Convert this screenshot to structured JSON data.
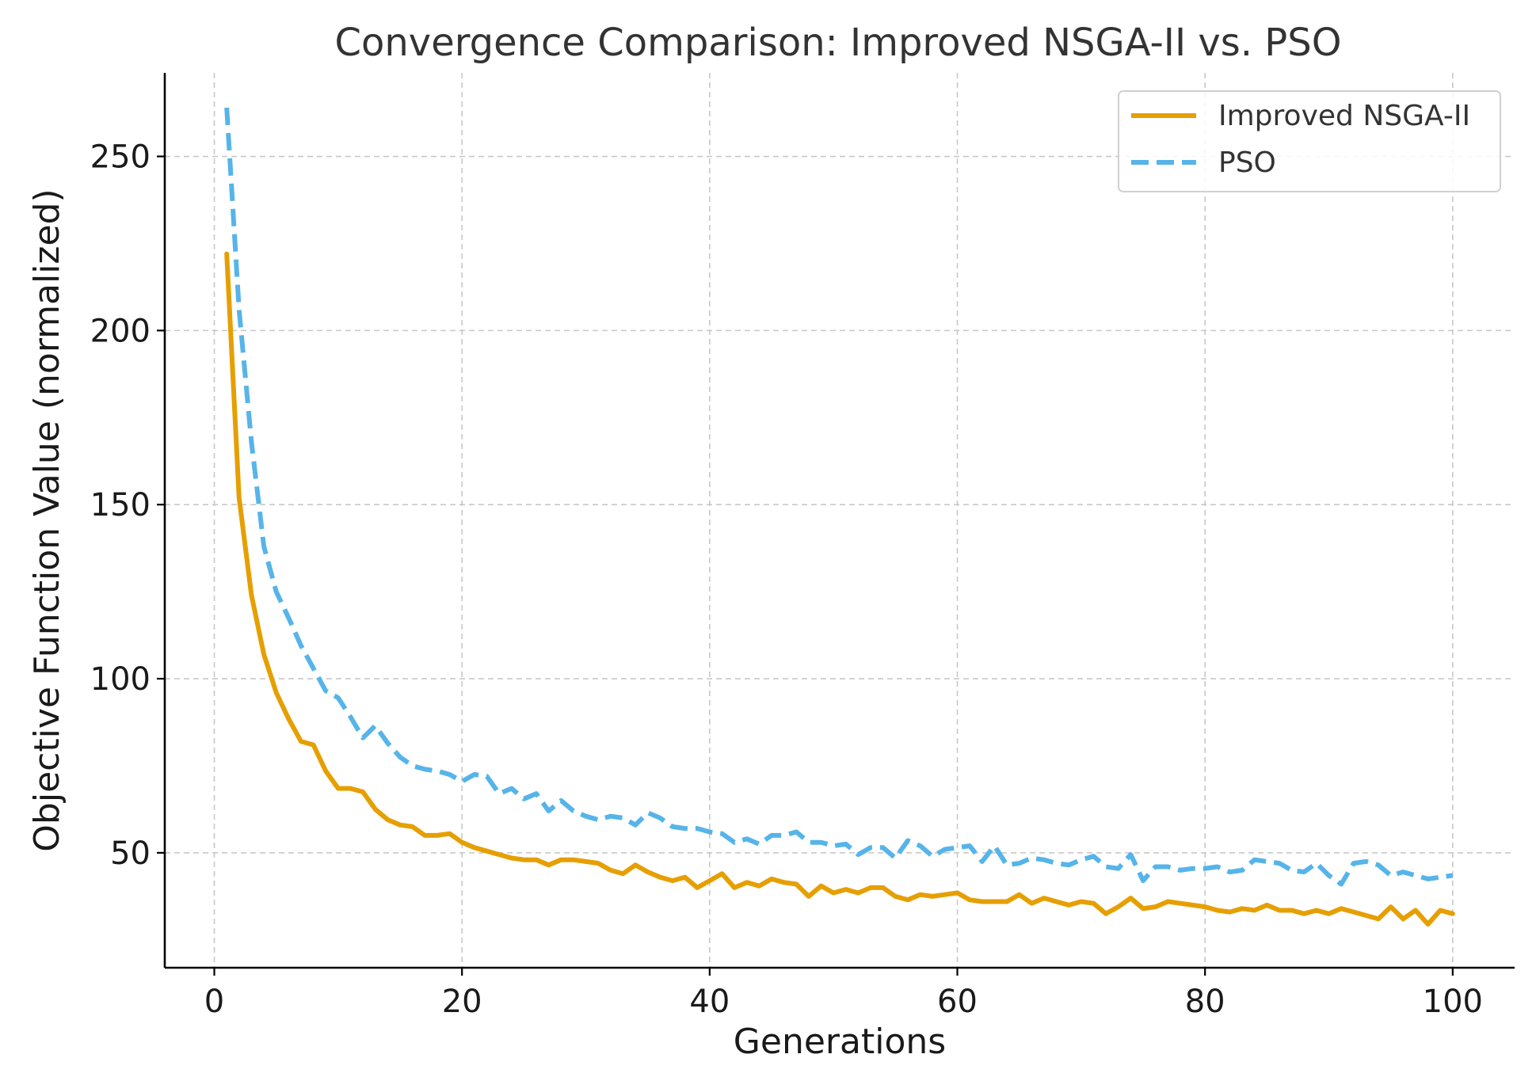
{
  "chart_data": {
    "type": "line",
    "title": "Convergence Comparison: Improved NSGA-II vs. PSO",
    "xlabel": "Generations",
    "ylabel": "Objective Function Value (normalized)",
    "xlim": [
      -4,
      105
    ],
    "ylim": [
      17,
      274
    ],
    "x_ticks": [
      0,
      20,
      40,
      60,
      80,
      100
    ],
    "y_ticks": [
      50,
      100,
      150,
      200,
      250
    ],
    "grid": true,
    "legend_position": "top-right",
    "x": [
      1,
      2,
      3,
      4,
      5,
      6,
      7,
      8,
      9,
      10,
      11,
      12,
      13,
      14,
      15,
      16,
      17,
      18,
      19,
      20,
      21,
      22,
      23,
      24,
      25,
      26,
      27,
      28,
      29,
      30,
      31,
      32,
      33,
      34,
      35,
      36,
      37,
      38,
      39,
      40,
      41,
      42,
      43,
      44,
      45,
      46,
      47,
      48,
      49,
      50,
      51,
      52,
      53,
      54,
      55,
      56,
      57,
      58,
      59,
      60,
      61,
      62,
      63,
      64,
      65,
      66,
      67,
      68,
      69,
      70,
      71,
      72,
      73,
      74,
      75,
      76,
      77,
      78,
      79,
      80,
      81,
      82,
      83,
      84,
      85,
      86,
      87,
      88,
      89,
      90,
      91,
      92,
      93,
      94,
      95,
      96,
      97,
      98,
      99,
      100
    ],
    "series": [
      {
        "name": "Improved NSGA-II",
        "color": "#E69F00",
        "style": "solid",
        "values": [
          222,
          152,
          124,
          107,
          96,
          88.5,
          82,
          81,
          73.5,
          68.5,
          68.5,
          67.5,
          62.5,
          59.5,
          58,
          57.5,
          55,
          55,
          55.5,
          53,
          51.5,
          50.5,
          49.5,
          48.5,
          48,
          48,
          46.5,
          48,
          48,
          47.5,
          47,
          45,
          44,
          46.5,
          44.5,
          43,
          42,
          43,
          40,
          42,
          44,
          40,
          41.5,
          40.5,
          42.5,
          41.5,
          41,
          37.5,
          40.5,
          38.5,
          39.5,
          38.5,
          40,
          40,
          37.5,
          36.5,
          38,
          37.5,
          38,
          38.5,
          36.5,
          36,
          36,
          36,
          38,
          35.5,
          37,
          36,
          35,
          36,
          35.5,
          32.5,
          34.5,
          37,
          34,
          34.5,
          36,
          35.5,
          35,
          34.5,
          33.5,
          33,
          34,
          33.5,
          35,
          33.5,
          33.5,
          32.5,
          33.5,
          32.5,
          34,
          33,
          32,
          31,
          34.5,
          31,
          33.5,
          29.5,
          33.5,
          32.5
        ]
      },
      {
        "name": "PSO",
        "color": "#56B4E9",
        "style": "dashed",
        "values": [
          264,
          206,
          168,
          138,
          125,
          117.5,
          109.5,
          103,
          96.5,
          94.5,
          89,
          83,
          86.5,
          81.5,
          77.5,
          75,
          74,
          73.5,
          72.5,
          70.5,
          72.5,
          72,
          67,
          68.5,
          65.5,
          67,
          62,
          65,
          62,
          60.5,
          59.5,
          60.5,
          60,
          58,
          61.5,
          60,
          57.5,
          57,
          57,
          56,
          55.5,
          53,
          54,
          52.5,
          55,
          55,
          56,
          53,
          53,
          52,
          52.5,
          49.5,
          51.5,
          51.5,
          48.5,
          53.5,
          52,
          49,
          51,
          51.5,
          52,
          47.5,
          52,
          46.5,
          47,
          48.5,
          48,
          47,
          46.5,
          48,
          49,
          46,
          45.5,
          49.5,
          42,
          46,
          46,
          45,
          45.5,
          45.5,
          46,
          44.5,
          45,
          48,
          47.5,
          47,
          45,
          44.5,
          47,
          43.5,
          41,
          47,
          47.5,
          46.5,
          43.5,
          44.5,
          43.5,
          42.5,
          43,
          43.5
        ]
      }
    ]
  }
}
